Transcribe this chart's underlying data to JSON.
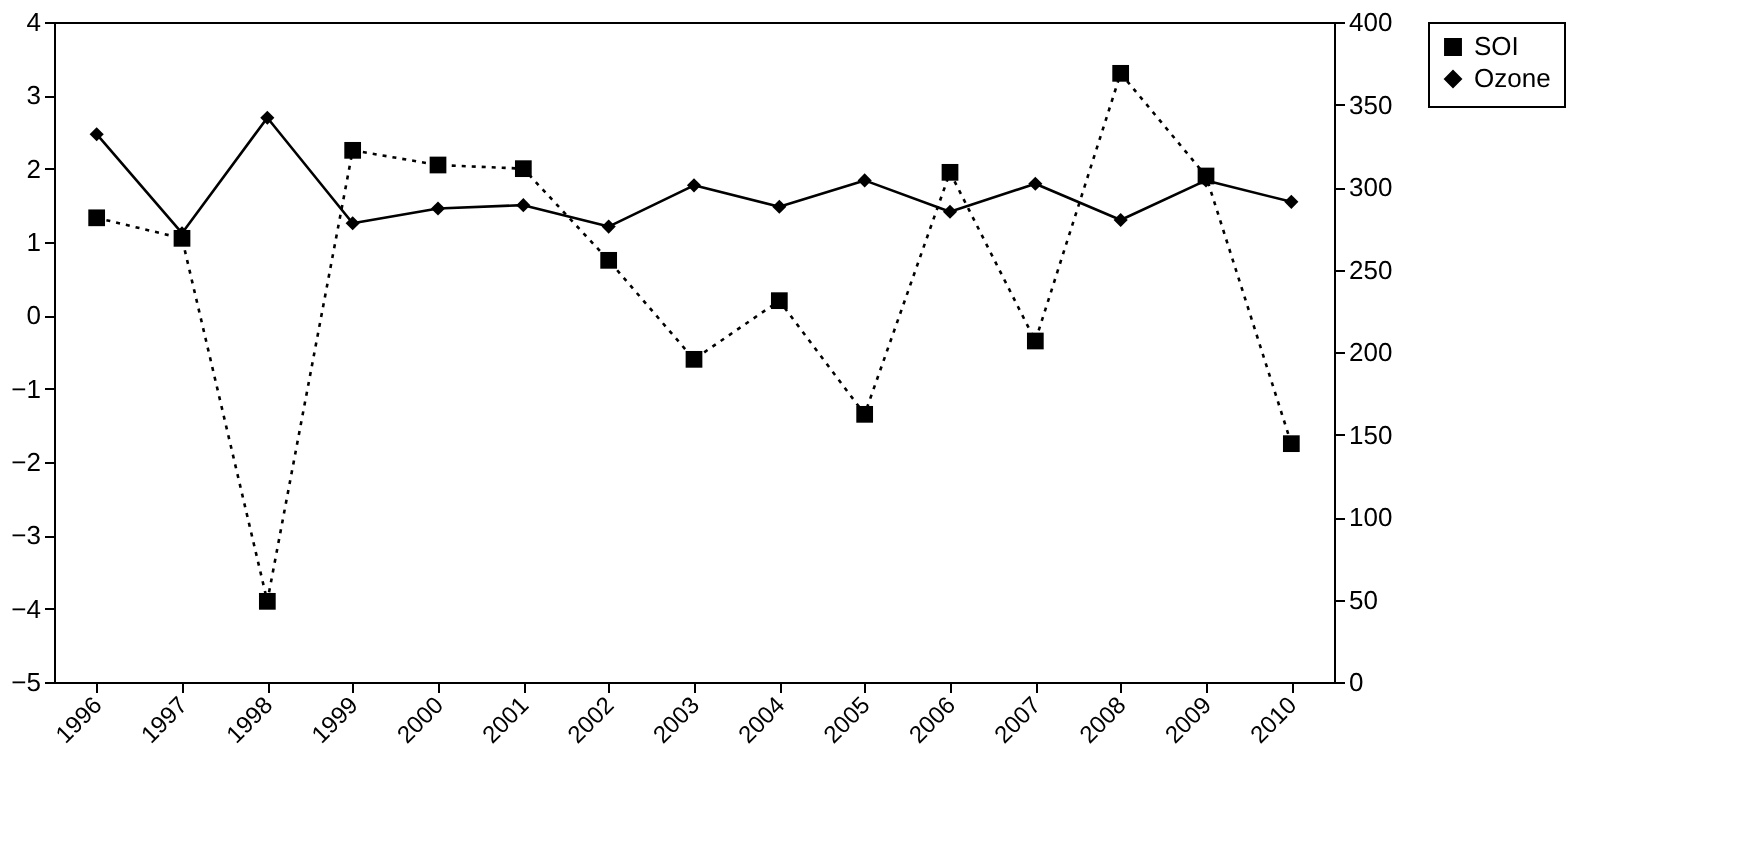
{
  "chart_data": {
    "type": "line",
    "categories": [
      "1996",
      "1997",
      "1998",
      "1999",
      "2000",
      "2001",
      "2002",
      "2003",
      "2004",
      "2005",
      "2006",
      "2007",
      "2008",
      "2009",
      "2010"
    ],
    "series": [
      {
        "name": "SOI",
        "color": "#000000",
        "marker": "square",
        "line_style": "dotted",
        "values": [
          1.33,
          1.05,
          -3.9,
          2.25,
          2.05,
          2.0,
          0.75,
          -0.6,
          0.2,
          -1.35,
          1.95,
          -0.35,
          3.3,
          1.9,
          -1.75
        ]
      },
      {
        "name": "Ozone",
        "color": "#000000",
        "marker": "diamond",
        "line_style": "solid",
        "axis": "y2",
        "values": [
          332,
          272,
          342,
          278,
          287,
          289,
          276,
          301,
          288,
          304,
          285,
          302,
          280,
          304,
          291
        ]
      }
    ],
    "ylim": [
      -5,
      4
    ],
    "yticks": [
      -5,
      -4,
      -3,
      -2,
      -1,
      0,
      1,
      2,
      3,
      4
    ],
    "y2lim": [
      0,
      400
    ],
    "y2ticks": [
      0,
      50,
      100,
      150,
      200,
      250,
      300,
      350,
      400
    ],
    "grid": false,
    "legend": "right"
  }
}
